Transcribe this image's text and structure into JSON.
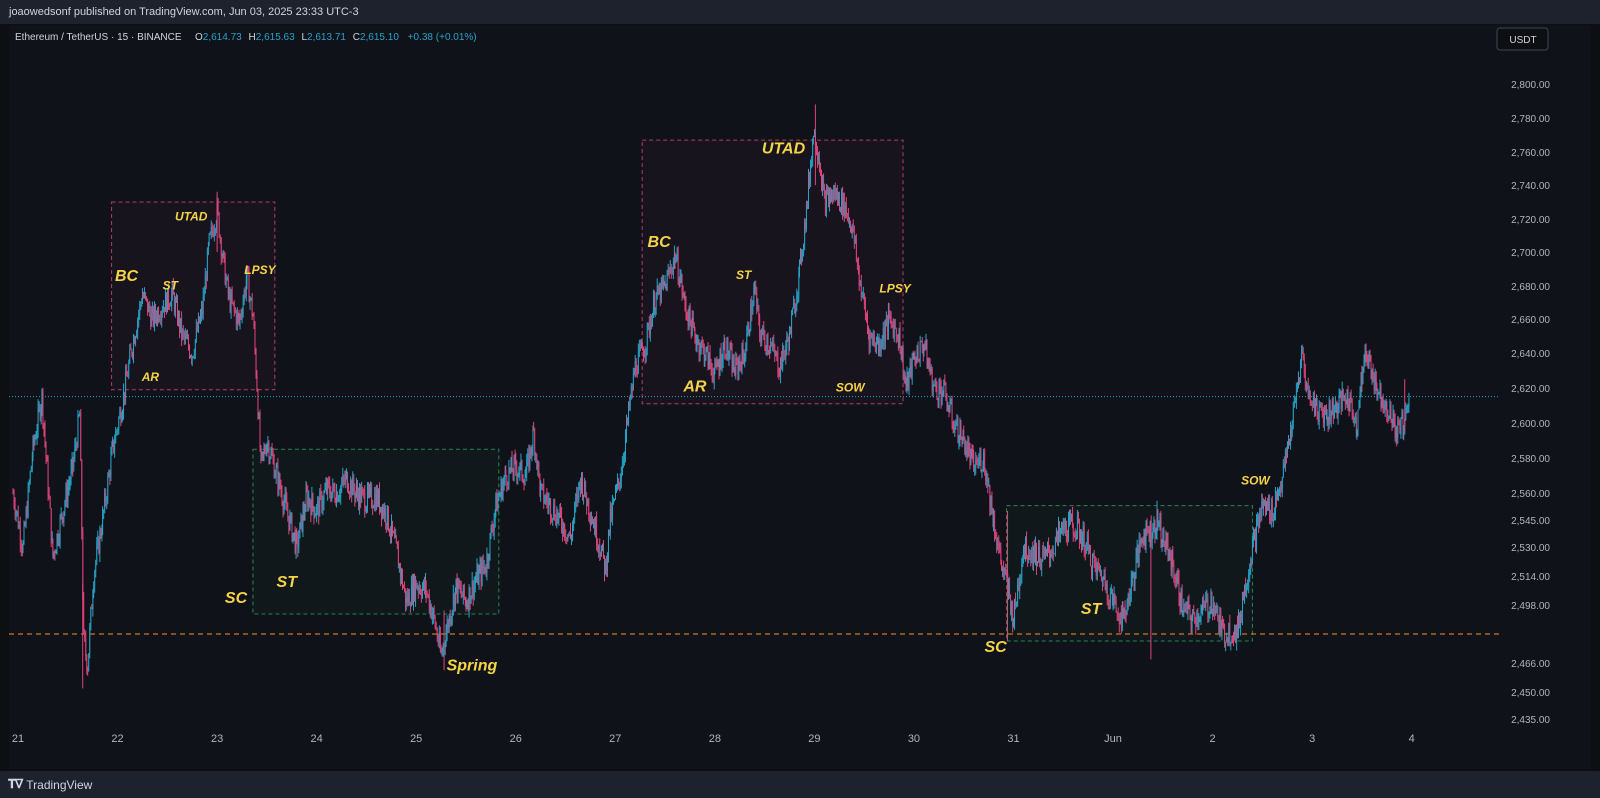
{
  "header": {
    "published_text": "joaowedsonf published on TradingView.com, Jun 03, 2025 23:33 UTC-3"
  },
  "footer": {
    "brand": "TradingView",
    "brand_icon": "tradingview-logo-icon"
  },
  "chart_data": {
    "type": "candlestick",
    "symbol": "Ethereum / TetherUS · 15 · BINANCE",
    "ohlc": {
      "o_label": "O",
      "o": "2,614.73",
      "h_label": "H",
      "h": "2,615.63",
      "l_label": "L",
      "l": "2,613.71",
      "c_label": "C",
      "c": "2,615.10",
      "change": "+0.38 (+0.01%)"
    },
    "currency_button": "USDT",
    "y_ticks": [
      "2,800.00",
      "2,780.00",
      "2,760.00",
      "2,740.00",
      "2,720.00",
      "2,700.00",
      "2,680.00",
      "2,660.00",
      "2,640.00",
      "2,620.00",
      "2,600.00",
      "2,580.00",
      "2,560.00",
      "2,545.00",
      "2,530.00",
      "2,514.00",
      "2,498.00",
      "2,466.00",
      "2,450.00",
      "2,435.00"
    ],
    "x_ticks": [
      "21",
      "22",
      "23",
      "24",
      "25",
      "26",
      "27",
      "28",
      "29",
      "30",
      "31",
      "Jun",
      "2",
      "3",
      "4"
    ],
    "x_tick_day": [
      21,
      22,
      23,
      24,
      25,
      26,
      27,
      28,
      29,
      30,
      31,
      32,
      33,
      34,
      35
    ],
    "price_lines": [
      {
        "label": "2,615.10",
        "price": 2615.1,
        "color": "#26a4c7",
        "style": "dotted"
      },
      {
        "label": "2,481.86",
        "price": 2481.86,
        "color": "#f7931a",
        "style": "dashed"
      }
    ],
    "zones": [
      {
        "day_from": 21.94,
        "day_to": 23.58,
        "price_hi": 2730,
        "price_lo": 2619,
        "color": "#e0457b"
      },
      {
        "day_from": 23.36,
        "day_to": 25.83,
        "price_hi": 2585,
        "price_lo": 2493,
        "color": "#26a65b"
      },
      {
        "day_from": 27.27,
        "day_to": 29.89,
        "price_hi": 2767,
        "price_lo": 2611,
        "color": "#e0457b"
      },
      {
        "day_from": 30.93,
        "day_to": 33.4,
        "price_hi": 2553,
        "price_lo": 2478,
        "color": "#26a65b"
      }
    ],
    "annotations": [
      {
        "text": "BC",
        "day": 22.09,
        "price": 2683,
        "size": "large"
      },
      {
        "text": "ST",
        "day": 22.53,
        "price": 2678,
        "size": "small"
      },
      {
        "text": "UTAD",
        "day": 22.74,
        "price": 2719,
        "size": "small"
      },
      {
        "text": "LPSY",
        "day": 23.43,
        "price": 2687,
        "size": "small"
      },
      {
        "text": "AR",
        "day": 22.33,
        "price": 2624,
        "size": "small"
      },
      {
        "text": "SC",
        "day": 23.19,
        "price": 2499,
        "size": "large"
      },
      {
        "text": "ST",
        "day": 23.7,
        "price": 2508,
        "size": "large"
      },
      {
        "text": "Spring",
        "day": 25.56,
        "price": 2462,
        "size": "large"
      },
      {
        "text": "BC",
        "day": 27.44,
        "price": 2703,
        "size": "large"
      },
      {
        "text": "UTAD",
        "day": 28.69,
        "price": 2759,
        "size": "large"
      },
      {
        "text": "ST",
        "day": 28.29,
        "price": 2684,
        "size": "small"
      },
      {
        "text": "LPSY",
        "day": 29.81,
        "price": 2676,
        "size": "small"
      },
      {
        "text": "AR",
        "day": 27.8,
        "price": 2618,
        "size": "large"
      },
      {
        "text": "SOW",
        "day": 29.36,
        "price": 2618,
        "size": "small"
      },
      {
        "text": "SC",
        "day": 30.82,
        "price": 2472,
        "size": "large"
      },
      {
        "text": "ST",
        "day": 31.78,
        "price": 2493,
        "size": "large"
      },
      {
        "text": "SOW",
        "day": 33.43,
        "price": 2565,
        "size": "small"
      }
    ],
    "price_path": [
      [
        20.95,
        2560
      ],
      [
        21.05,
        2530
      ],
      [
        21.15,
        2585
      ],
      [
        21.24,
        2615
      ],
      [
        21.35,
        2525
      ],
      [
        21.45,
        2550
      ],
      [
        21.55,
        2575
      ],
      [
        21.62,
        2605
      ],
      [
        21.66,
        2478
      ],
      [
        21.7,
        2465
      ],
      [
        21.76,
        2515
      ],
      [
        21.85,
        2545
      ],
      [
        21.95,
        2585
      ],
      [
        22.05,
        2612
      ],
      [
        22.15,
        2645
      ],
      [
        22.25,
        2675
      ],
      [
        22.35,
        2660
      ],
      [
        22.45,
        2668
      ],
      [
        22.55,
        2675
      ],
      [
        22.65,
        2650
      ],
      [
        22.75,
        2640
      ],
      [
        22.85,
        2665
      ],
      [
        22.92,
        2705
      ],
      [
        23.0,
        2725
      ],
      [
        23.06,
        2695
      ],
      [
        23.12,
        2672
      ],
      [
        23.22,
        2658
      ],
      [
        23.3,
        2685
      ],
      [
        23.36,
        2662
      ],
      [
        23.4,
        2622
      ],
      [
        23.44,
        2575
      ],
      [
        23.5,
        2590
      ],
      [
        23.6,
        2570
      ],
      [
        23.7,
        2550
      ],
      [
        23.8,
        2530
      ],
      [
        23.9,
        2558
      ],
      [
        24.0,
        2550
      ],
      [
        24.1,
        2562
      ],
      [
        24.2,
        2560
      ],
      [
        24.3,
        2568
      ],
      [
        24.4,
        2560
      ],
      [
        24.5,
        2556
      ],
      [
        24.6,
        2558
      ],
      [
        24.7,
        2548
      ],
      [
        24.8,
        2528
      ],
      [
        24.9,
        2500
      ],
      [
        25.0,
        2510
      ],
      [
        25.1,
        2506
      ],
      [
        25.18,
        2490
      ],
      [
        25.25,
        2470
      ],
      [
        25.3,
        2483
      ],
      [
        25.4,
        2508
      ],
      [
        25.5,
        2500
      ],
      [
        25.6,
        2512
      ],
      [
        25.7,
        2520
      ],
      [
        25.8,
        2553
      ],
      [
        25.9,
        2570
      ],
      [
        26.0,
        2575
      ],
      [
        26.1,
        2570
      ],
      [
        26.18,
        2594
      ],
      [
        26.25,
        2560
      ],
      [
        26.35,
        2553
      ],
      [
        26.45,
        2545
      ],
      [
        26.55,
        2535
      ],
      [
        26.65,
        2568
      ],
      [
        26.75,
        2550
      ],
      [
        26.85,
        2530
      ],
      [
        26.9,
        2518
      ],
      [
        26.95,
        2545
      ],
      [
        27.05,
        2570
      ],
      [
        27.15,
        2612
      ],
      [
        27.2,
        2632
      ],
      [
        27.3,
        2645
      ],
      [
        27.4,
        2672
      ],
      [
        27.5,
        2680
      ],
      [
        27.6,
        2698
      ],
      [
        27.65,
        2685
      ],
      [
        27.7,
        2668
      ],
      [
        27.8,
        2650
      ],
      [
        27.9,
        2640
      ],
      [
        28.0,
        2628
      ],
      [
        28.1,
        2645
      ],
      [
        28.2,
        2630
      ],
      [
        28.3,
        2640
      ],
      [
        28.35,
        2660
      ],
      [
        28.4,
        2678
      ],
      [
        28.45,
        2652
      ],
      [
        28.55,
        2645
      ],
      [
        28.65,
        2632
      ],
      [
        28.75,
        2650
      ],
      [
        28.85,
        2688
      ],
      [
        28.92,
        2725
      ],
      [
        28.99,
        2772
      ],
      [
        29.04,
        2760
      ],
      [
        29.1,
        2730
      ],
      [
        29.2,
        2735
      ],
      [
        29.3,
        2728
      ],
      [
        29.38,
        2715
      ],
      [
        29.45,
        2685
      ],
      [
        29.55,
        2650
      ],
      [
        29.65,
        2645
      ],
      [
        29.75,
        2660
      ],
      [
        29.85,
        2650
      ],
      [
        29.92,
        2620
      ],
      [
        30.0,
        2637
      ],
      [
        30.1,
        2645
      ],
      [
        30.2,
        2620
      ],
      [
        30.3,
        2618
      ],
      [
        30.4,
        2600
      ],
      [
        30.5,
        2590
      ],
      [
        30.6,
        2575
      ],
      [
        30.7,
        2580
      ],
      [
        30.8,
        2545
      ],
      [
        30.88,
        2520
      ],
      [
        30.95,
        2505
      ],
      [
        31.0,
        2490
      ],
      [
        31.1,
        2530
      ],
      [
        31.2,
        2527
      ],
      [
        31.3,
        2523
      ],
      [
        31.4,
        2530
      ],
      [
        31.5,
        2540
      ],
      [
        31.6,
        2542
      ],
      [
        31.7,
        2535
      ],
      [
        31.8,
        2520
      ],
      [
        31.9,
        2513
      ],
      [
        32.0,
        2500
      ],
      [
        32.1,
        2490
      ],
      [
        32.2,
        2513
      ],
      [
        32.3,
        2538
      ],
      [
        32.4,
        2540
      ],
      [
        32.45,
        2545
      ],
      [
        32.5,
        2535
      ],
      [
        32.6,
        2520
      ],
      [
        32.7,
        2496
      ],
      [
        32.8,
        2490
      ],
      [
        32.9,
        2495
      ],
      [
        33.0,
        2500
      ],
      [
        33.1,
        2482
      ],
      [
        33.2,
        2484
      ],
      [
        33.25,
        2482
      ],
      [
        33.3,
        2500
      ],
      [
        33.4,
        2530
      ],
      [
        33.5,
        2553
      ],
      [
        33.6,
        2550
      ],
      [
        33.7,
        2568
      ],
      [
        33.8,
        2600
      ],
      [
        33.9,
        2640
      ],
      [
        33.95,
        2618
      ],
      [
        34.05,
        2608
      ],
      [
        34.15,
        2605
      ],
      [
        34.25,
        2610
      ],
      [
        34.35,
        2615
      ],
      [
        34.45,
        2600
      ],
      [
        34.5,
        2628
      ],
      [
        34.55,
        2640
      ],
      [
        34.65,
        2620
      ],
      [
        34.75,
        2610
      ],
      [
        34.85,
        2595
      ],
      [
        34.92,
        2600
      ],
      [
        34.98,
        2615
      ]
    ],
    "wicks": [
      [
        23.0,
        2736,
        2700
      ],
      [
        29.01,
        2788,
        2740
      ],
      [
        34.93,
        2625,
        2595
      ],
      [
        21.65,
        2510,
        2452
      ],
      [
        25.28,
        2495,
        2462
      ],
      [
        30.94,
        2550,
        2478
      ],
      [
        32.38,
        2545,
        2468
      ]
    ]
  }
}
